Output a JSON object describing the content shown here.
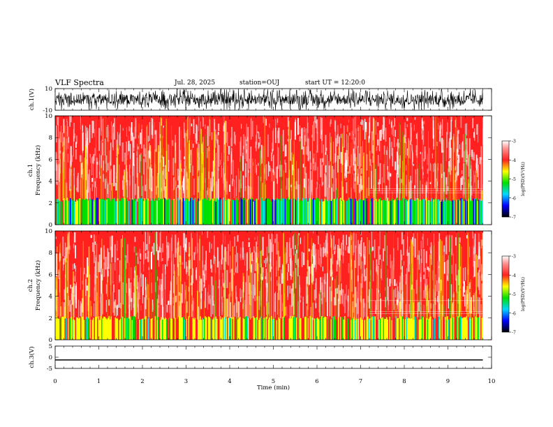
{
  "header": {
    "title": "VLF Spectra",
    "date": "Jul. 28, 2025",
    "station": "station=OUJ",
    "start": "start UT =  12:20:0"
  },
  "chart_data": [
    {
      "type": "line",
      "name": "ch1-waveform",
      "ylabel": "ch.1(V)",
      "ylim": [
        -10,
        10
      ],
      "yticks": [
        "10",
        "-10"
      ],
      "xlim": [
        0,
        10
      ],
      "note": "dense noisy waveform spanning 0 to ~9.8 min"
    },
    {
      "type": "heatmap",
      "name": "ch1-spectrogram",
      "title": "ch.1",
      "ylabel": "Frequency (kHz)",
      "ylim": [
        0,
        10
      ],
      "yticks": [
        "0",
        "2",
        "4",
        "6",
        "8",
        "10"
      ],
      "xlim": [
        0,
        10
      ],
      "data_end_min": 9.8,
      "low_band_khz": [
        0,
        2.3
      ],
      "colorbar": {
        "label": "log(PSD)(V²/Hz)",
        "range": [
          -7,
          -3
        ],
        "ticks": [
          "-3",
          "-4",
          "-5",
          "-6",
          "-7"
        ]
      }
    },
    {
      "type": "heatmap",
      "name": "ch2-spectrogram",
      "title": "ch.2",
      "ylabel": "Frequency (kHz)",
      "ylim": [
        0,
        10
      ],
      "yticks": [
        "0",
        "2",
        "4",
        "6",
        "8",
        "10"
      ],
      "xlim": [
        0,
        10
      ],
      "data_end_min": 9.8,
      "low_band_khz": [
        0,
        2.0
      ],
      "colorbar": {
        "label": "log(PSD)(V²/Hz)",
        "range": [
          -7,
          -3
        ],
        "ticks": [
          "-3",
          "-4",
          "-5",
          "-6",
          "-7"
        ]
      }
    },
    {
      "type": "line",
      "name": "ch3-waveform",
      "ylabel": "ch.3(V)",
      "ylim": [
        -5,
        5
      ],
      "yticks": [
        "5",
        "0",
        "-5"
      ],
      "xlim": [
        0,
        10
      ],
      "x": [
        0,
        9.8
      ],
      "y": [
        -1.2,
        -1.2
      ]
    }
  ],
  "xaxis": {
    "label": "Time (min)",
    "ticks": [
      "0",
      "1",
      "2",
      "3",
      "4",
      "5",
      "6",
      "7",
      "8",
      "9",
      "10"
    ]
  },
  "colors": {
    "background": "#ffffff",
    "axes": "#000000",
    "high": "#ff2020",
    "mid": "#ffff00",
    "low": "#00e000",
    "cyan": "#00e0e0",
    "blue": "#0000ff"
  }
}
